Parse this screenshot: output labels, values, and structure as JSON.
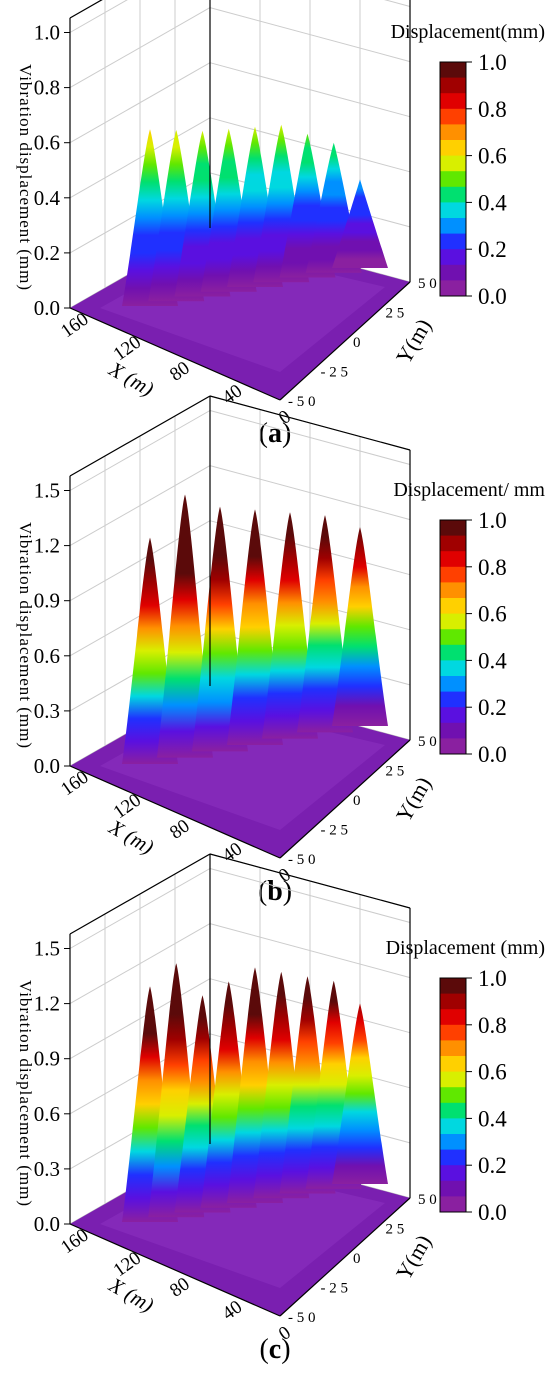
{
  "panels": [
    {
      "caption_letter": "a",
      "chart_data": {
        "type": "surface3d",
        "zlabel": "Vibration displacement (mm)",
        "xlabel": "X (m)",
        "ylabel": "Y(m)",
        "colorbar_title": "Displacement(mm)",
        "zticks": [
          "0.0",
          "0.2",
          "0.4",
          "0.6",
          "0.8",
          "1.0"
        ],
        "zlim": [
          0,
          1.0
        ],
        "xticks": [
          "160",
          "120",
          "80",
          "40",
          "0"
        ],
        "yticks": [
          "5 0",
          "2 5",
          "0",
          "- 2 5",
          "- 5 0"
        ],
        "colorbar_ticks": [
          "1.0",
          "0.8",
          "0.6",
          "0.4",
          "0.2",
          "0.0"
        ],
        "peaks_mm": [
          0.62,
          0.6,
          0.58,
          0.57,
          0.56,
          0.55,
          0.5,
          0.45,
          0.3
        ]
      }
    },
    {
      "caption_letter": "b",
      "chart_data": {
        "type": "surface3d",
        "zlabel": "Vibration displacement (mm)",
        "xlabel": "X (m)",
        "ylabel": "Y(m)",
        "colorbar_title": "Displacement/ mm",
        "zticks": [
          "0.0",
          "0.3",
          "0.6",
          "0.9",
          "1.2",
          "1.5"
        ],
        "zlim": [
          0,
          1.5
        ],
        "xticks": [
          "160",
          "120",
          "80",
          "40",
          "0"
        ],
        "yticks": [
          "5 0",
          "2 5",
          "0",
          "- 2 5",
          "- 5 0"
        ],
        "colorbar_ticks": [
          "1.0",
          "0.8",
          "0.6",
          "0.4",
          "0.2",
          "0.0"
        ],
        "peaks_mm": [
          1.2,
          1.4,
          1.3,
          1.25,
          1.2,
          1.15,
          1.05
        ]
      }
    },
    {
      "caption_letter": "c",
      "chart_data": {
        "type": "surface3d",
        "zlabel": "Vibration displacement (mm)",
        "xlabel": "X (m)",
        "ylabel": "Y(m)",
        "colorbar_title": "Displacement (mm)",
        "zticks": [
          "0.0",
          "0.3",
          "0.6",
          "0.9",
          "1.2",
          "1.5"
        ],
        "zlim": [
          0,
          1.5
        ],
        "xticks": [
          "160",
          "120",
          "80",
          "40",
          "0"
        ],
        "yticks": [
          "5 0",
          "2 5",
          "0",
          "- 2 5",
          "- 5 0"
        ],
        "colorbar_ticks": [
          "1.0",
          "0.8",
          "0.6",
          "0.4",
          "0.2",
          "0.0"
        ],
        "peaks_mm": [
          1.25,
          1.35,
          1.15,
          1.2,
          1.25,
          1.2,
          1.15,
          1.1,
          0.95
        ]
      }
    }
  ],
  "colormap": [
    "#5b0a0a",
    "#a00000",
    "#e00000",
    "#ff4000",
    "#ff9000",
    "#ffd000",
    "#d8ef00",
    "#60e800",
    "#00e070",
    "#00d8e0",
    "#0090ff",
    "#2030ff",
    "#5a10e0",
    "#7010b0",
    "#8a20a0"
  ]
}
